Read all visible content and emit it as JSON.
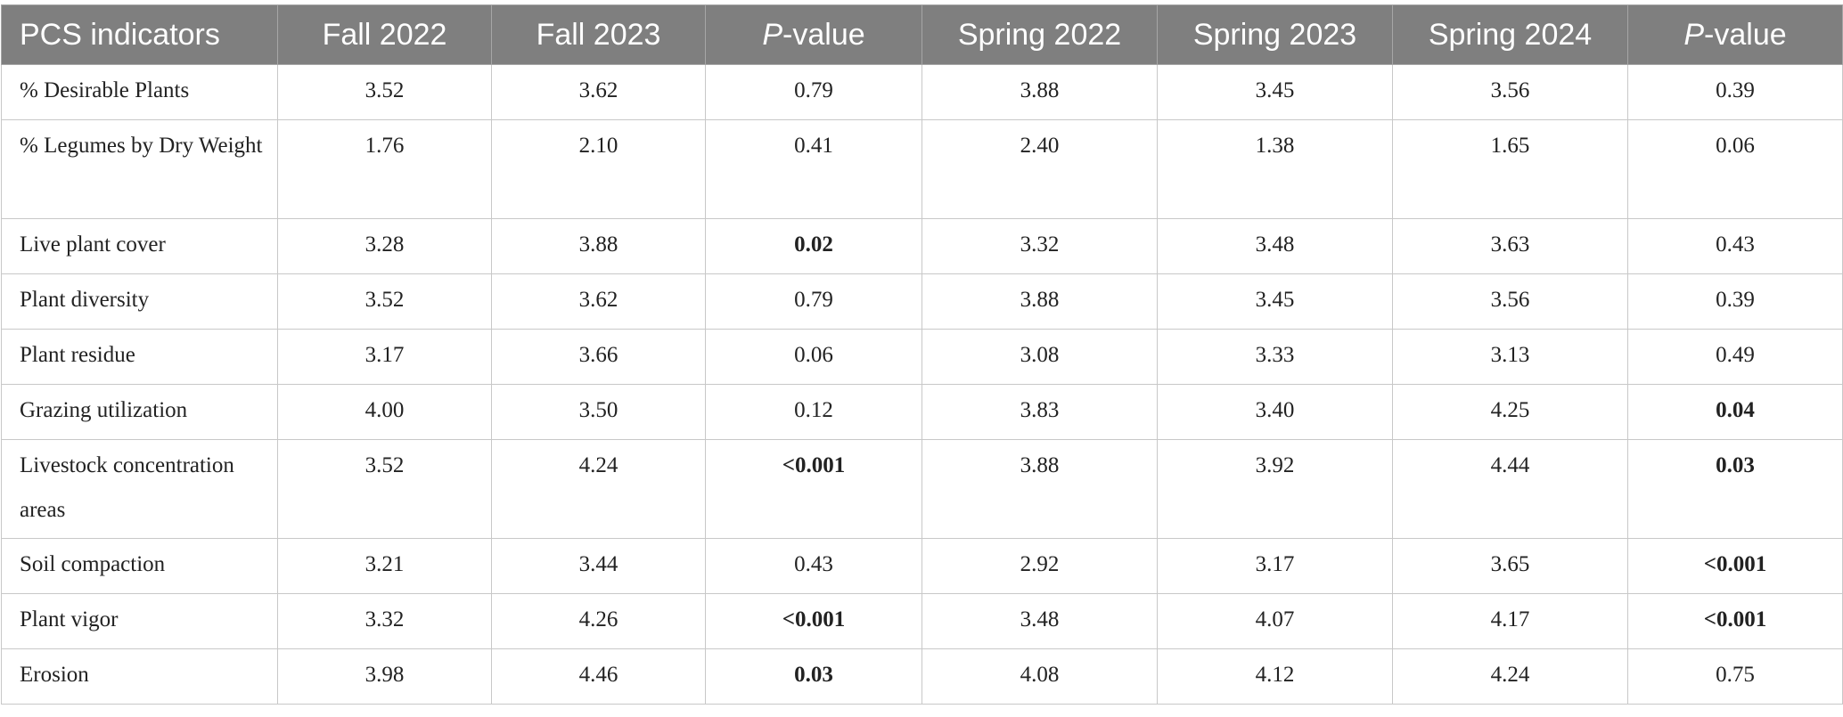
{
  "table": {
    "headers": [
      "PCS indicators",
      "Fall 2022",
      "Fall 2023",
      "P-value",
      "Spring 2022",
      "Spring 2023",
      "Spring 2024",
      "P-value"
    ],
    "pvalue_header": {
      "italic": "P",
      "rest": "-value"
    },
    "rows": [
      {
        "indicator": "% Desirable Plants",
        "lines": 1,
        "values": [
          "3.52",
          "3.62",
          "0.79",
          "3.88",
          "3.45",
          "3.56",
          "0.39"
        ],
        "bold": [
          false,
          false,
          false,
          false,
          false,
          false,
          false
        ]
      },
      {
        "indicator": "% Legumes by Dry Weight",
        "lines": 2,
        "values": [
          "1.76",
          "2.10",
          "0.41",
          "2.40",
          "1.38",
          "1.65",
          "0.06"
        ],
        "bold": [
          false,
          false,
          false,
          false,
          false,
          false,
          false
        ]
      },
      {
        "indicator": "Live plant cover",
        "lines": 1,
        "values": [
          "3.28",
          "3.88",
          "0.02",
          "3.32",
          "3.48",
          "3.63",
          "0.43"
        ],
        "bold": [
          false,
          false,
          true,
          false,
          false,
          false,
          false
        ]
      },
      {
        "indicator": "Plant diversity",
        "lines": 1,
        "values": [
          "3.52",
          "3.62",
          "0.79",
          "3.88",
          "3.45",
          "3.56",
          "0.39"
        ],
        "bold": [
          false,
          false,
          false,
          false,
          false,
          false,
          false
        ]
      },
      {
        "indicator": "Plant residue",
        "lines": 1,
        "values": [
          "3.17",
          "3.66",
          "0.06",
          "3.08",
          "3.33",
          "3.13",
          "0.49"
        ],
        "bold": [
          false,
          false,
          false,
          false,
          false,
          false,
          false
        ]
      },
      {
        "indicator": "Grazing utilization",
        "lines": 1,
        "values": [
          "4.00",
          "3.50",
          "0.12",
          "3.83",
          "3.40",
          "4.25",
          "0.04"
        ],
        "bold": [
          false,
          false,
          false,
          false,
          false,
          false,
          true
        ]
      },
      {
        "indicator": "Livestock concentration areas",
        "lines": 2,
        "values": [
          "3.52",
          "4.24",
          "<0.001",
          "3.88",
          "3.92",
          "4.44",
          "0.03"
        ],
        "bold": [
          false,
          false,
          true,
          false,
          false,
          false,
          true
        ]
      },
      {
        "indicator": "Soil compaction",
        "lines": 1,
        "values": [
          "3.21",
          "3.44",
          "0.43",
          "2.92",
          "3.17",
          "3.65",
          "<0.001"
        ],
        "bold": [
          false,
          false,
          false,
          false,
          false,
          false,
          true
        ]
      },
      {
        "indicator": "Plant vigor",
        "lines": 1,
        "values": [
          "3.32",
          "4.26",
          "<0.001",
          "3.48",
          "4.07",
          "4.17",
          "<0.001"
        ],
        "bold": [
          false,
          false,
          true,
          false,
          false,
          false,
          true
        ]
      },
      {
        "indicator": "Erosion",
        "lines": 1,
        "values": [
          "3.98",
          "4.46",
          "0.03",
          "4.08",
          "4.12",
          "4.24",
          "0.75"
        ],
        "bold": [
          false,
          false,
          true,
          false,
          false,
          false,
          false
        ]
      }
    ]
  }
}
